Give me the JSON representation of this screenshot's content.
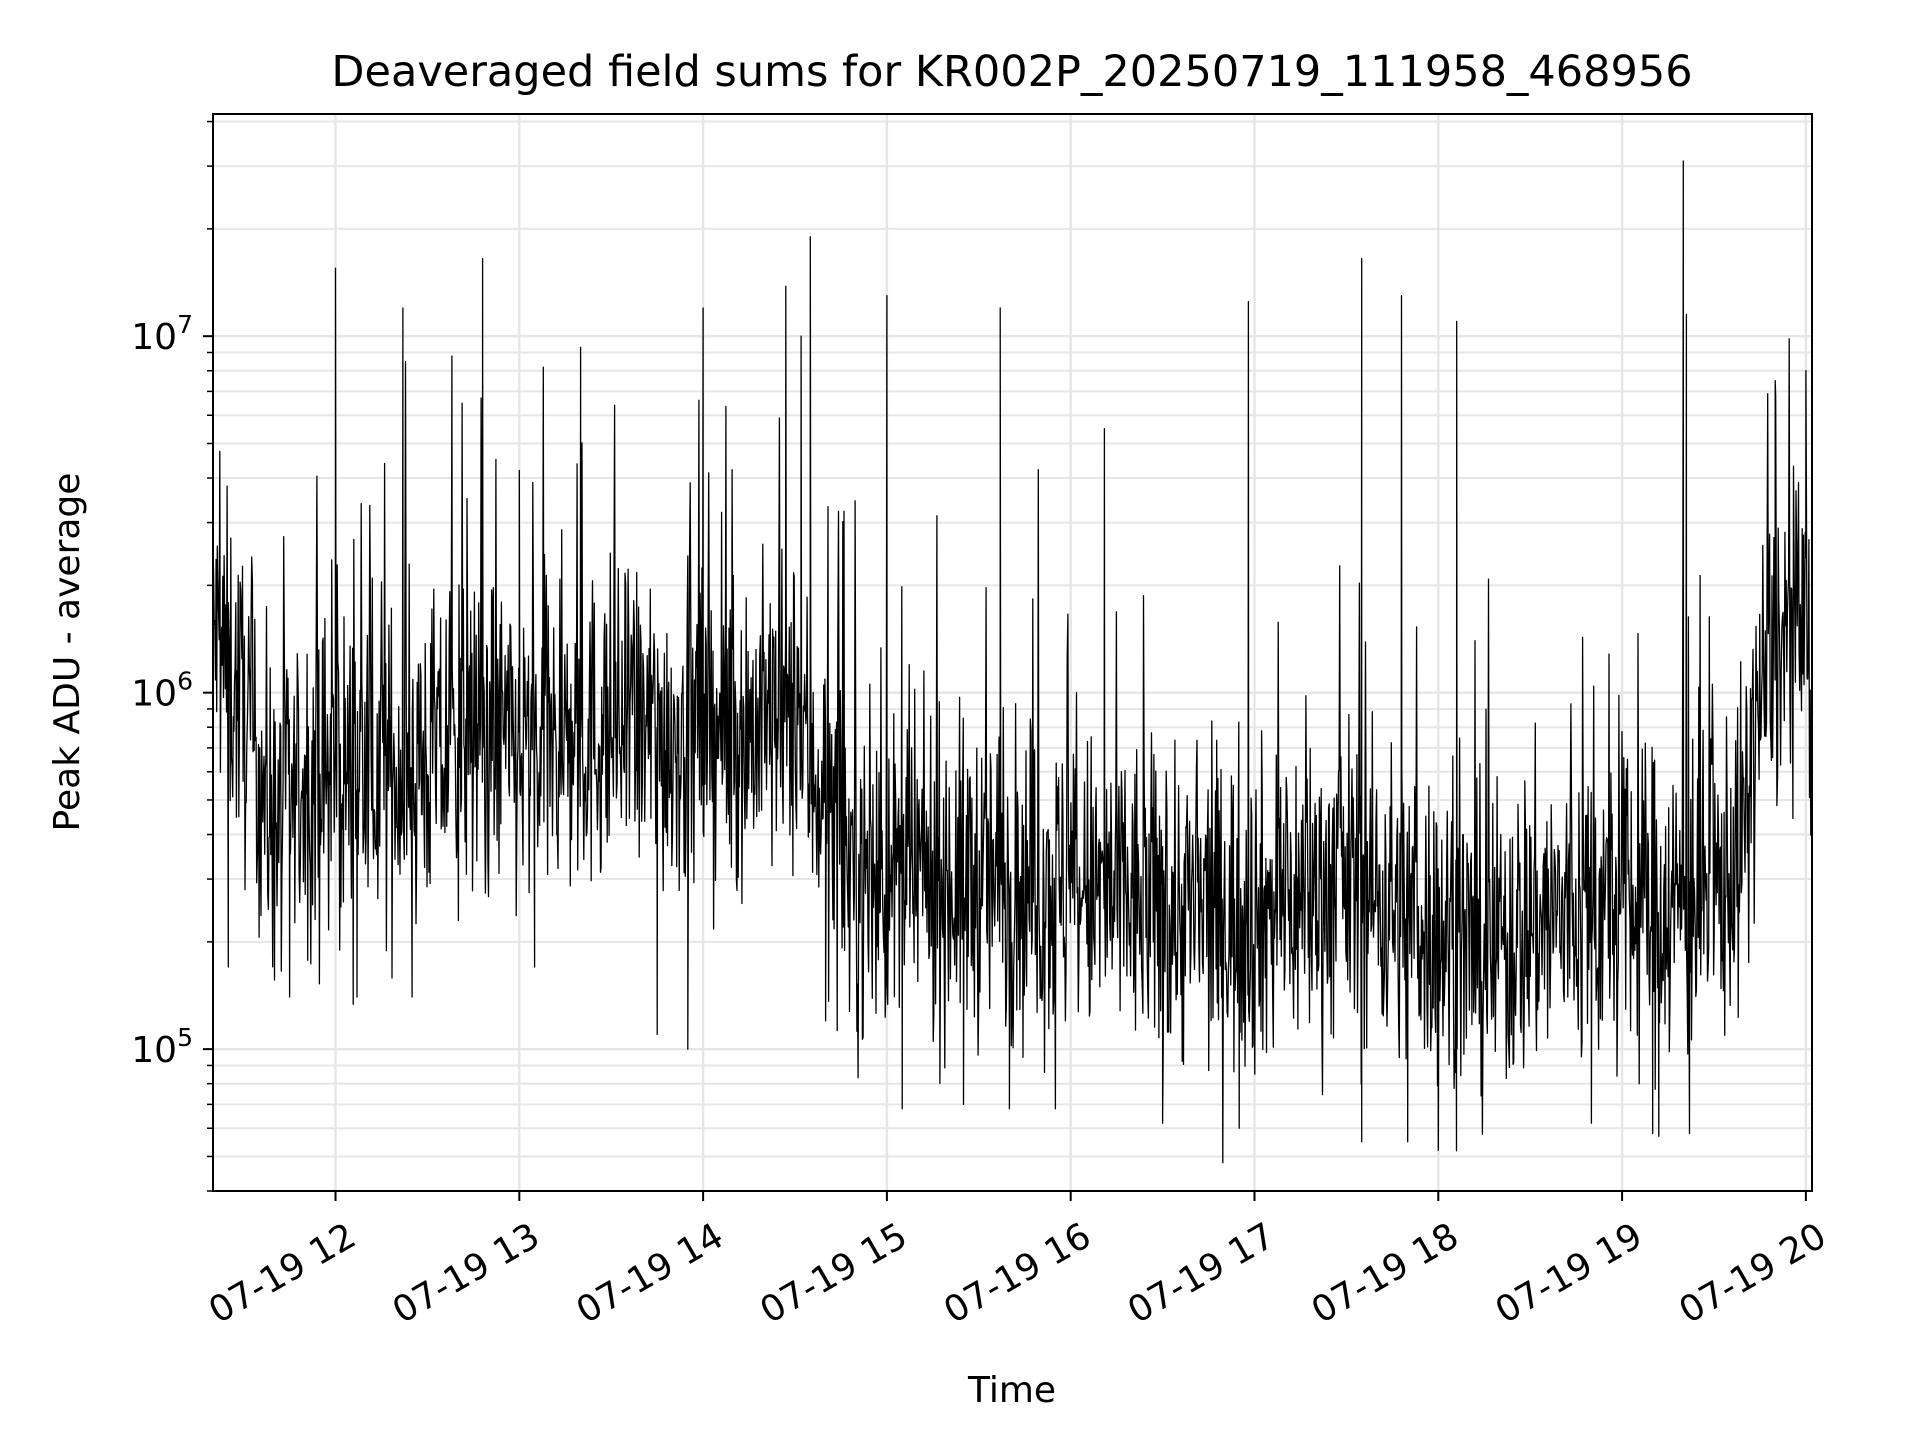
{
  "chart_data": {
    "type": "line",
    "title": "Deaveraged field sums for KR002P_20250719_111958_468956",
    "xlabel": "Time",
    "ylabel": "Peak ADU - average",
    "yscale": "log",
    "ylim": [
      40000,
      42000000
    ],
    "xlim": [
      "2025-07-19 11:20",
      "2025-07-19 20:02"
    ],
    "grid": true,
    "line_color": "#000000",
    "grid_color": "#e6e6e6",
    "x_ticks": [
      "07-19 12",
      "07-19 13",
      "07-19 14",
      "07-19 15",
      "07-19 16",
      "07-19 17",
      "07-19 18",
      "07-19 19",
      "07-19 20"
    ],
    "y_ticks": [
      {
        "base": "10",
        "exp": "5",
        "value": 100000
      },
      {
        "base": "10",
        "exp": "6",
        "value": 1000000
      },
      {
        "base": "10",
        "exp": "7",
        "value": 10000000
      }
    ],
    "series": [
      {
        "baseline": [
          {
            "x": "2025-07-19 11:20",
            "y": 1500000
          },
          {
            "x": "2025-07-19 11:30",
            "y": 900000
          },
          {
            "x": "2025-07-19 11:40",
            "y": 420000
          },
          {
            "x": "2025-07-19 11:50",
            "y": 550000
          },
          {
            "x": "2025-07-19 12:00",
            "y": 600000
          },
          {
            "x": "2025-07-19 12:20",
            "y": 600000
          },
          {
            "x": "2025-07-19 12:40",
            "y": 700000
          },
          {
            "x": "2025-07-19 12:50",
            "y": 800000
          },
          {
            "x": "2025-07-19 13:00",
            "y": 650000
          },
          {
            "x": "2025-07-19 13:30",
            "y": 800000
          },
          {
            "x": "2025-07-19 14:00",
            "y": 750000
          },
          {
            "x": "2025-07-19 14:30",
            "y": 850000
          },
          {
            "x": "2025-07-19 14:40",
            "y": 500000
          },
          {
            "x": "2025-07-19 14:50",
            "y": 300000
          },
          {
            "x": "2025-07-19 15:30",
            "y": 300000
          },
          {
            "x": "2025-07-19 16:00",
            "y": 280000
          },
          {
            "x": "2025-07-19 16:30",
            "y": 250000
          },
          {
            "x": "2025-07-19 16:50",
            "y": 240000
          },
          {
            "x": "2025-07-19 17:00",
            "y": 240000
          },
          {
            "x": "2025-07-19 17:30",
            "y": 300000
          },
          {
            "x": "2025-07-19 18:00",
            "y": 220000
          },
          {
            "x": "2025-07-19 18:15",
            "y": 180000
          },
          {
            "x": "2025-07-19 18:30",
            "y": 230000
          },
          {
            "x": "2025-07-19 19:00",
            "y": 250000
          },
          {
            "x": "2025-07-19 19:30",
            "y": 260000
          },
          {
            "x": "2025-07-19 19:40",
            "y": 400000
          },
          {
            "x": "2025-07-19 19:45",
            "y": 1000000
          },
          {
            "x": "2025-07-19 19:50",
            "y": 1300000
          },
          {
            "x": "2025-07-19 20:00",
            "y": 1500000
          },
          {
            "x": "2025-07-19 20:02",
            "y": 700000
          }
        ],
        "peaks": [
          {
            "x": "2025-07-19 12:00",
            "y": 15500000
          },
          {
            "x": "2025-07-19 12:22",
            "y": 12000000
          },
          {
            "x": "2025-07-19 12:38",
            "y": 8800000
          },
          {
            "x": "2025-07-19 12:48",
            "y": 16500000
          },
          {
            "x": "2025-07-19 13:00",
            "y": 4200000
          },
          {
            "x": "2025-07-19 13:20",
            "y": 9300000
          },
          {
            "x": "2025-07-19 14:00",
            "y": 12000000
          },
          {
            "x": "2025-07-19 14:27",
            "y": 13800000
          },
          {
            "x": "2025-07-19 14:32",
            "y": 10000000
          },
          {
            "x": "2025-07-19 14:35",
            "y": 19000000
          },
          {
            "x": "2025-07-19 15:00",
            "y": 13000000
          },
          {
            "x": "2025-07-19 15:37",
            "y": 12000000
          },
          {
            "x": "2025-07-19 16:11",
            "y": 5500000
          },
          {
            "x": "2025-07-19 16:58",
            "y": 12500000
          },
          {
            "x": "2025-07-19 17:35",
            "y": 16500000
          },
          {
            "x": "2025-07-19 17:48",
            "y": 13000000
          },
          {
            "x": "2025-07-19 18:06",
            "y": 11000000
          },
          {
            "x": "2025-07-19 19:20",
            "y": 31000000
          },
          {
            "x": "2025-07-19 19:21",
            "y": 11500000
          },
          {
            "x": "2025-07-19 19:50",
            "y": 7500000
          },
          {
            "x": "2025-07-19 20:00",
            "y": 8000000
          }
        ],
        "troughs": [
          {
            "x": "2025-07-19 11:25",
            "y": 170000
          },
          {
            "x": "2025-07-19 11:45",
            "y": 140000
          },
          {
            "x": "2025-07-19 12:07",
            "y": 140000
          },
          {
            "x": "2025-07-19 12:25",
            "y": 140000
          },
          {
            "x": "2025-07-19 13:05",
            "y": 170000
          },
          {
            "x": "2025-07-19 13:45",
            "y": 110000
          },
          {
            "x": "2025-07-19 13:55",
            "y": 100000
          },
          {
            "x": "2025-07-19 14:40",
            "y": 120000
          },
          {
            "x": "2025-07-19 15:05",
            "y": 68000
          },
          {
            "x": "2025-07-19 15:25",
            "y": 70000
          },
          {
            "x": "2025-07-19 15:40",
            "y": 68000
          },
          {
            "x": "2025-07-19 15:55",
            "y": 68000
          },
          {
            "x": "2025-07-19 16:30",
            "y": 62000
          },
          {
            "x": "2025-07-19 16:55",
            "y": 60000
          },
          {
            "x": "2025-07-19 17:35",
            "y": 55000
          },
          {
            "x": "2025-07-19 17:50",
            "y": 55000
          },
          {
            "x": "2025-07-19 18:00",
            "y": 52000
          },
          {
            "x": "2025-07-19 18:50",
            "y": 62000
          },
          {
            "x": "2025-07-19 19:10",
            "y": 58000
          },
          {
            "x": "2025-07-19 19:12",
            "y": 57000
          },
          {
            "x": "2025-07-19 19:22",
            "y": 58000
          }
        ]
      }
    ]
  }
}
